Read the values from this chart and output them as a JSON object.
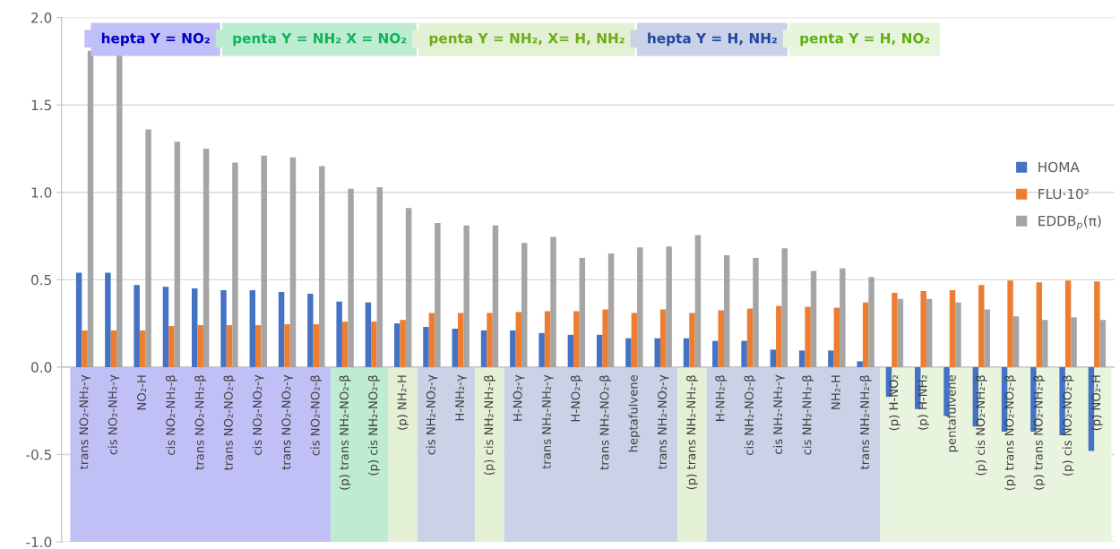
{
  "chart_data": {
    "type": "bar",
    "categories": [
      "trans NO₂-NH₂-γ",
      "cis NO₂-NH₂-γ",
      "NO₂-H",
      "cis NO₂-NH₂-β",
      "trans NO₂-NH₂-β",
      "trans NO₂-NO₂-β",
      "cis NO₂-NO₂-γ",
      "trans NO₂-NO₂-γ",
      "cis NO₂-NO₂-β",
      "(p) trans NH₂-NO₂-β",
      "(p) cis NH₂-NO₂-β",
      "(p) NH₂-H",
      "cis NH₂-NO₂-γ",
      "H-NH₂-γ",
      "(p) cis NH₂-NH₂-β",
      "H-NO₂-γ",
      "trans NH₂-NH₂-γ",
      "H-NO₂-β",
      "trans NH₂-NO₂-β",
      "heptafulvene",
      "trans NH₂-NO₂-γ",
      "(p) trans NH₂-NH₂-β",
      "H-NH₂-β",
      "cis NH₂-NO₂-β",
      "cis NH₂-NH₂-γ",
      "cis NH₂-NH₂-β",
      "NH₂-H",
      "trans NH₂-NH₂-β",
      "(p) H-NO₂",
      "(p) H-NH₂",
      "pentafulvene",
      "(p) cis NO₂-NH₂-β",
      "(p) trans NO₂-NO₂-β",
      "(p) trans NO₂-NH₂-β",
      "(p) cis NO₂-NO₂-β",
      "(p) NO₂-H"
    ],
    "series": [
      {
        "name": "HOMA",
        "color": "#4472c4",
        "values": [
          0.54,
          0.54,
          0.47,
          0.46,
          0.45,
          0.44,
          0.44,
          0.43,
          0.42,
          0.375,
          0.37,
          0.25,
          0.23,
          0.22,
          0.21,
          0.21,
          0.195,
          0.185,
          0.185,
          0.165,
          0.165,
          0.165,
          0.15,
          0.15,
          0.1,
          0.095,
          0.095,
          0.033,
          -0.17,
          -0.24,
          -0.28,
          -0.34,
          -0.37,
          -0.37,
          -0.39,
          -0.48
        ]
      },
      {
        "name": "FLU·10²",
        "color": "#ed7d31",
        "values": [
          0.21,
          0.21,
          0.21,
          0.235,
          0.24,
          0.24,
          0.24,
          0.245,
          0.245,
          0.26,
          0.26,
          0.27,
          0.31,
          0.31,
          0.31,
          0.315,
          0.32,
          0.32,
          0.33,
          0.31,
          0.33,
          0.31,
          0.325,
          0.335,
          0.35,
          0.345,
          0.34,
          0.37,
          0.425,
          0.435,
          0.44,
          0.47,
          0.495,
          0.485,
          0.495,
          0.49
        ]
      },
      {
        "name": "EDDB$_{p}$(π)",
        "color": "#a5a5a5",
        "values": [
          1.81,
          1.79,
          1.36,
          1.29,
          1.25,
          1.17,
          1.21,
          1.2,
          1.15,
          1.02,
          1.03,
          0.91,
          0.825,
          0.81,
          0.81,
          0.71,
          0.745,
          0.625,
          0.65,
          0.685,
          0.69,
          0.755,
          0.64,
          0.625,
          0.68,
          0.55,
          0.565,
          0.515,
          0.39,
          0.39,
          0.37,
          0.33,
          0.29,
          0.27,
          0.285,
          0.27
        ]
      }
    ],
    "ylim": [
      -1,
      2
    ],
    "yticks": [
      {
        "value": -1,
        "label": "-1.0"
      },
      {
        "value": -0.5,
        "label": "-0.5"
      },
      {
        "value": 0,
        "label": "0.0"
      },
      {
        "value": 0.5,
        "label": "0.5"
      },
      {
        "value": 1,
        "label": "1.0"
      },
      {
        "value": 1.5,
        "label": "1.5"
      },
      {
        "value": 2,
        "label": "2.0"
      }
    ],
    "grid": "y",
    "legend": "right",
    "bands": [
      {
        "axis": "x",
        "from": "trans NO₂-NH₂-γ",
        "to": "cis NO₂-NO₂-β",
        "label": "hepta Y = NO₂",
        "color": "#c0c0f7"
      },
      {
        "axis": "x",
        "from": "(p) trans NH₂-NO₂-β",
        "to": "(p) cis NH₂-NO₂-β",
        "label": "penta Y = NH₂ X = NO₂",
        "color": "#bdecd2"
      },
      {
        "axis": "x",
        "from": "(p) NH₂-H",
        "to": "(p) NH₂-H",
        "label": "penta Y = NH₂, X= H, NH₂",
        "color": "#e4f0d4"
      },
      {
        "axis": "x",
        "from": "cis NH₂-NO₂-γ",
        "to": "H-NH₂-γ",
        "label": "hepta Y = H, NH₂",
        "color": "#c9d2e6"
      },
      {
        "axis": "x",
        "from": "(p) cis NH₂-NH₂-β",
        "to": "(p) cis NH₂-NH₂-β",
        "color": "#e4f0d4"
      },
      {
        "axis": "x",
        "from": "H-NO₂-γ",
        "to": "trans NH₂-NO₂-γ",
        "color": "#c9d2e6"
      },
      {
        "axis": "x",
        "from": "(p) trans NH₂-NH₂-β",
        "to": "(p) trans NH₂-NH₂-β",
        "color": "#e4f0d4"
      },
      {
        "axis": "x",
        "from": "H-NH₂-β",
        "to": "trans NH₂-NH₂-β",
        "color": "#c9d2e6"
      },
      {
        "axis": "x",
        "from": "(p) H-NO₂",
        "to": "(p) NO₂-H",
        "label": "penta Y = H, NO₂",
        "color": "#e9f4de"
      }
    ]
  }
}
